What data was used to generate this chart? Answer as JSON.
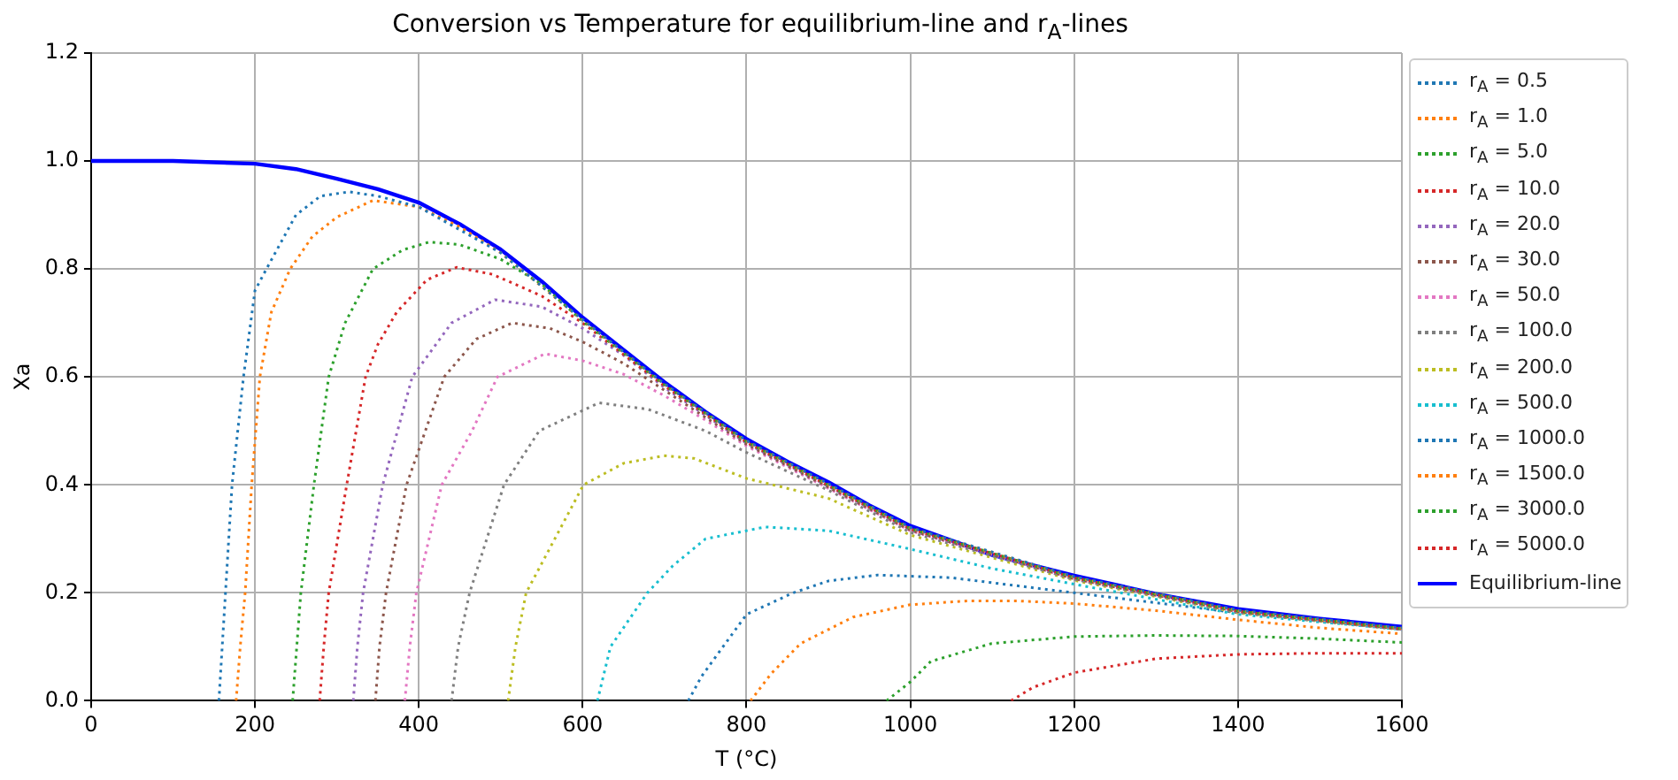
{
  "chart_data": {
    "type": "line",
    "title": "Conversion vs Temperature for equilibrium-line and r$_{A}$-lines",
    "xlabel": "T (°C)",
    "ylabel": "Xa",
    "xlim": [
      0,
      1600
    ],
    "xticks": [
      0,
      200,
      400,
      600,
      800,
      1000,
      1200,
      1400,
      1600
    ],
    "ylim": [
      0,
      1.2
    ],
    "yticks": [
      {
        "value": 0,
        "label": "0.0"
      },
      {
        "value": 0.2,
        "label": "0.2"
      },
      {
        "value": 0.4,
        "label": "0.4"
      },
      {
        "value": 0.6,
        "label": "0.6"
      },
      {
        "value": 0.8,
        "label": "0.8"
      },
      {
        "value": 1,
        "label": "1.0"
      },
      {
        "value": 1.2,
        "label": "1.2"
      }
    ],
    "grid": true,
    "legend": "right",
    "marker": "none",
    "series": [
      {
        "name": "r$_{A}$ = 0.5",
        "color": "#1f77b4",
        "line_style": "dotted",
        "x": [
          156,
          160,
          164,
          172,
          186,
          200,
          214,
          250,
          280,
          315,
          350,
          400,
          500,
          600,
          700,
          800,
          900,
          1000,
          1200,
          1400,
          1600
        ],
        "values": [
          0,
          0.1,
          0.2,
          0.4,
          0.6,
          0.76,
          0.8,
          0.9,
          0.935,
          0.943,
          0.935,
          0.915,
          0.83,
          0.706,
          0.587,
          0.482,
          0.402,
          0.321,
          0.23,
          0.168,
          0.135
        ]
      },
      {
        "name": "r$_{A}$ = 1.0",
        "color": "#ff7f0e",
        "line_style": "dotted",
        "x": [
          177,
          182,
          188,
          196,
          206,
          220,
          243,
          270,
          300,
          344,
          400,
          450,
          500,
          600,
          700,
          800,
          1000,
          1200,
          1400,
          1600
        ],
        "values": [
          0,
          0.1,
          0.2,
          0.4,
          0.6,
          0.72,
          0.8,
          0.86,
          0.896,
          0.927,
          0.915,
          0.878,
          0.83,
          0.705,
          0.586,
          0.481,
          0.32,
          0.229,
          0.167,
          0.134
        ]
      },
      {
        "name": "r$_{A}$ = 5.0",
        "color": "#2ca02c",
        "line_style": "dotted",
        "x": [
          246,
          251,
          256,
          272,
          290,
          310,
          344,
          380,
          413,
          450,
          500,
          550,
          600,
          700,
          800,
          1000,
          1200,
          1400,
          1600
        ],
        "values": [
          0,
          0.1,
          0.2,
          0.4,
          0.6,
          0.7,
          0.8,
          0.835,
          0.85,
          0.845,
          0.818,
          0.772,
          0.703,
          0.585,
          0.48,
          0.319,
          0.228,
          0.166,
          0.134
        ]
      },
      {
        "name": "r$_{A}$ = 10.0",
        "color": "#d62728",
        "line_style": "dotted",
        "x": [
          279,
          284,
          290,
          312,
          335,
          350,
          373,
          410,
          446,
          490,
          550,
          600,
          700,
          800,
          1000,
          1200,
          1400,
          1600
        ],
        "values": [
          0,
          0.1,
          0.2,
          0.4,
          0.6,
          0.66,
          0.72,
          0.78,
          0.803,
          0.79,
          0.75,
          0.7,
          0.583,
          0.479,
          0.318,
          0.228,
          0.166,
          0.133
        ]
      },
      {
        "name": "r$_{A}$ = 20.0",
        "color": "#9467bd",
        "line_style": "dotted",
        "x": [
          320,
          325,
          332,
          356,
          392,
          440,
          493,
          550,
          600,
          650,
          700,
          800,
          1000,
          1200,
          1400,
          1600
        ],
        "values": [
          0,
          0.1,
          0.2,
          0.4,
          0.6,
          0.7,
          0.743,
          0.73,
          0.69,
          0.64,
          0.58,
          0.477,
          0.317,
          0.227,
          0.165,
          0.133
        ]
      },
      {
        "name": "r$_{A}$ = 30.0",
        "color": "#8c564b",
        "line_style": "dotted",
        "x": [
          347,
          352,
          360,
          385,
          431,
          470,
          514,
          560,
          600,
          650,
          700,
          800,
          1000,
          1200,
          1400,
          1600
        ],
        "values": [
          0,
          0.1,
          0.2,
          0.4,
          0.6,
          0.67,
          0.7,
          0.69,
          0.665,
          0.625,
          0.575,
          0.475,
          0.316,
          0.226,
          0.165,
          0.133
        ]
      },
      {
        "name": "r$_{A}$ = 50.0",
        "color": "#e377c2",
        "line_style": "dotted",
        "x": [
          383,
          389,
          397,
          428,
          465,
          496,
          554,
          600,
          650,
          700,
          750,
          800,
          1000,
          1200,
          1400,
          1600
        ],
        "values": [
          0,
          0.1,
          0.2,
          0.4,
          0.5,
          0.6,
          0.643,
          0.63,
          0.605,
          0.565,
          0.52,
          0.472,
          0.315,
          0.226,
          0.165,
          0.133
        ]
      },
      {
        "name": "r$_{A}$ = 100.0",
        "color": "#7f7f7f",
        "line_style": "dotted",
        "x": [
          440,
          448,
          462,
          504,
          547,
          620,
          680,
          750,
          800,
          900,
          1000,
          1200,
          1400,
          1600
        ],
        "values": [
          0,
          0.1,
          0.2,
          0.4,
          0.5,
          0.552,
          0.54,
          0.5,
          0.46,
          0.39,
          0.312,
          0.225,
          0.164,
          0.132
        ]
      },
      {
        "name": "r$_{A}$ = 200.0",
        "color": "#bcbd22",
        "line_style": "dotted",
        "x": [
          509,
          518,
          531,
          601,
          650,
          699,
          736,
          800,
          900,
          1000,
          1200,
          1400,
          1600
        ],
        "values": [
          0,
          0.1,
          0.2,
          0.4,
          0.44,
          0.454,
          0.449,
          0.412,
          0.375,
          0.307,
          0.223,
          0.163,
          0.132
        ]
      },
      {
        "name": "r$_{A}$ = 500.0",
        "color": "#17becf",
        "line_style": "dotted",
        "x": [
          618,
          634,
          679,
          710,
          750,
          823,
          900,
          1000,
          1100,
          1200,
          1400,
          1600
        ],
        "values": [
          0,
          0.1,
          0.2,
          0.25,
          0.3,
          0.322,
          0.315,
          0.281,
          0.245,
          0.216,
          0.16,
          0.132
        ]
      },
      {
        "name": "r$_{A}$ = 1000.0",
        "color": "#1f77b4",
        "line_style": "dotted",
        "x": [
          729,
          745,
          800,
          857,
          900,
          960,
          1050,
          1200,
          1400,
          1600
        ],
        "values": [
          0,
          0.045,
          0.16,
          0.2,
          0.222,
          0.233,
          0.228,
          0.2,
          0.163,
          0.132
        ]
      },
      {
        "name": "r$_{A}$ = 1500.0",
        "color": "#ff7f0e",
        "line_style": "dotted",
        "x": [
          805,
          830,
          866,
          930,
          1000,
          1070,
          1130,
          1200,
          1300,
          1400,
          1500,
          1600
        ],
        "values": [
          0,
          0.05,
          0.106,
          0.155,
          0.178,
          0.185,
          0.185,
          0.18,
          0.167,
          0.15,
          0.135,
          0.124
        ]
      },
      {
        "name": "r$_{A}$ = 3000.0",
        "color": "#2ca02c",
        "line_style": "dotted",
        "x": [
          971,
          1000,
          1025,
          1099,
          1200,
          1300,
          1400,
          1500,
          1600
        ],
        "values": [
          0,
          0.035,
          0.073,
          0.106,
          0.119,
          0.121,
          0.12,
          0.115,
          0.108
        ]
      },
      {
        "name": "r$_{A}$ = 5000.0",
        "color": "#d62728",
        "line_style": "dotted",
        "x": [
          1123,
          1150,
          1200,
          1300,
          1400,
          1500,
          1600
        ],
        "values": [
          0,
          0.025,
          0.052,
          0.078,
          0.086,
          0.088,
          0.088
        ]
      },
      {
        "name": "Equilibrium-line",
        "color": "#0000ff",
        "line_style": "solid",
        "x": [
          0,
          100,
          200,
          250,
          300,
          350,
          400,
          450,
          500,
          550,
          600,
          650,
          700,
          750,
          800,
          850,
          900,
          950,
          1000,
          1100,
          1200,
          1300,
          1400,
          1500,
          1600
        ],
        "values": [
          1.0,
          1.0,
          0.995,
          0.985,
          0.967,
          0.948,
          0.923,
          0.883,
          0.836,
          0.777,
          0.71,
          0.65,
          0.59,
          0.535,
          0.485,
          0.443,
          0.405,
          0.362,
          0.324,
          0.27,
          0.232,
          0.198,
          0.17,
          0.152,
          0.137
        ]
      }
    ]
  }
}
